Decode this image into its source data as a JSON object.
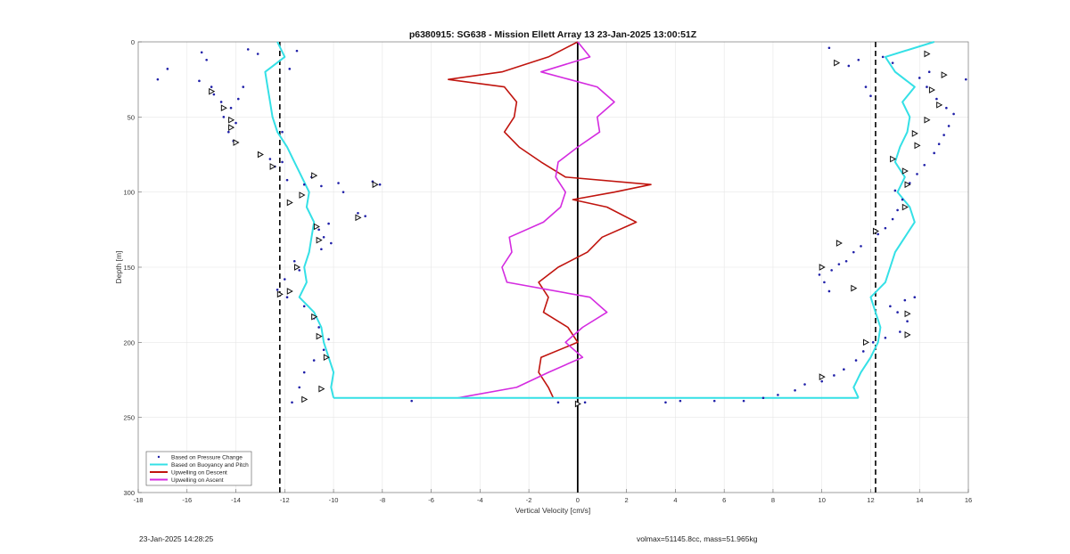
{
  "chart_data": {
    "type": "line",
    "title": "p6380915: SG638 - Mission Ellett Array 13 23-Jan-2025 13:00:51Z",
    "xlabel": "Vertical Velocity [cm/s]",
    "ylabel": "Depth [m]",
    "xlim": [
      -18,
      16
    ],
    "ylim": [
      0,
      300
    ],
    "y_reversed": true,
    "grid": true,
    "legend_position": "bottom-left",
    "x_ticks": [
      -18,
      -16,
      -14,
      -12,
      -10,
      -8,
      -6,
      -4,
      -2,
      0,
      2,
      4,
      6,
      8,
      10,
      12,
      14,
      16
    ],
    "y_ticks": [
      0,
      50,
      100,
      150,
      200,
      250,
      300
    ],
    "reference_lines": [
      {
        "x": -12.2,
        "style": "dashed",
        "color": "#000000"
      },
      {
        "x": 12.2,
        "style": "dashed",
        "color": "#000000"
      },
      {
        "x": 0,
        "style": "solid",
        "color": "#000000"
      }
    ],
    "legend": [
      {
        "label": "Based on Pressure Change",
        "style": "dots",
        "color": "#1f1fa8"
      },
      {
        "label": "Based on Buoyancy and Pitch",
        "style": "line",
        "color": "#34e0e6"
      },
      {
        "label": "Upwelling on Descent",
        "style": "line",
        "color": "#c0140e"
      },
      {
        "label": "Upwelling on Ascent",
        "style": "line",
        "color": "#d42be0"
      }
    ],
    "series": [
      {
        "name": "Based on Buoyancy and Pitch",
        "color": "#34e0e6",
        "branches": [
          {
            "depth": [
              0,
              10,
              20,
              30,
              40,
              50,
              60,
              70,
              80,
              90,
              100,
              110,
              120,
              130,
              140,
              150,
              160,
              170,
              180,
              190,
              200,
              210,
              220,
              230,
              237
            ],
            "velocity": [
              -12.3,
              -12.0,
              -12.8,
              -12.7,
              -12.6,
              -12.5,
              -12.3,
              -11.9,
              -11.6,
              -11.3,
              -11.0,
              -11.1,
              -10.8,
              -10.9,
              -11.0,
              -11.2,
              -11.1,
              -11.4,
              -10.8,
              -10.5,
              -10.4,
              -10.2,
              -10.0,
              -10.1,
              -10.0
            ]
          },
          {
            "depth": [
              0,
              10,
              20,
              30,
              40,
              50,
              60,
              70,
              80,
              90,
              100,
              110,
              120,
              130,
              140,
              150,
              160,
              170,
              180,
              190,
              200,
              210,
              220,
              230,
              237
            ],
            "velocity": [
              14.6,
              12.6,
              13.0,
              13.8,
              13.3,
              13.6,
              13.5,
              13.2,
              13.0,
              13.4,
              13.1,
              13.6,
              13.8,
              13.4,
              13.0,
              12.8,
              12.6,
              12.0,
              12.2,
              12.4,
              12.3,
              12.0,
              11.6,
              11.3,
              11.5
            ]
          }
        ]
      },
      {
        "name": "Upwelling on Descent",
        "color": "#c0140e",
        "depth": [
          0,
          10,
          20,
          25,
          30,
          40,
          50,
          60,
          70,
          80,
          90,
          95,
          100,
          105,
          110,
          120,
          130,
          140,
          150,
          160,
          170,
          180,
          190,
          200,
          210,
          220,
          230,
          237
        ],
        "velocity": [
          0,
          -1.2,
          -3.1,
          -5.3,
          -3.0,
          -2.5,
          -2.6,
          -3.0,
          -2.4,
          -1.5,
          -0.5,
          3.0,
          1.5,
          -0.2,
          1.2,
          2.4,
          1.0,
          0.4,
          -0.8,
          -1.6,
          -1.2,
          -1.4,
          -0.4,
          0.0,
          -1.5,
          -1.6,
          -1.2,
          -1.0
        ]
      },
      {
        "name": "Upwelling on Ascent",
        "color": "#d42be0",
        "depth": [
          0,
          10,
          20,
          30,
          40,
          50,
          60,
          70,
          80,
          90,
          100,
          110,
          120,
          130,
          140,
          150,
          160,
          170,
          180,
          190,
          200,
          210,
          220,
          230,
          237
        ],
        "velocity": [
          0,
          0.5,
          -1.5,
          0.8,
          1.5,
          0.8,
          0.9,
          0.0,
          -0.8,
          -0.9,
          -0.5,
          -0.7,
          -1.4,
          -2.8,
          -2.7,
          -3.1,
          -2.9,
          0.5,
          1.2,
          0.2,
          -0.5,
          0.2,
          -1.2,
          -2.5,
          -4.9
        ]
      }
    ],
    "bottom_connector": {
      "depth": 237,
      "from": -10.0,
      "to": 11.5
    },
    "pressure_change_points": [
      [
        -17.2,
        25
      ],
      [
        -16.8,
        18
      ],
      [
        -15.4,
        7
      ],
      [
        -15.2,
        12
      ],
      [
        -15.5,
        26
      ],
      [
        -15.0,
        30
      ],
      [
        -14.9,
        35
      ],
      [
        -14.6,
        40
      ],
      [
        -14.2,
        44
      ],
      [
        -14.5,
        50
      ],
      [
        -14.0,
        54
      ],
      [
        -14.3,
        60
      ],
      [
        -14.1,
        66
      ],
      [
        -13.9,
        38
      ],
      [
        -13.7,
        30
      ],
      [
        -13.1,
        8
      ],
      [
        -13.5,
        5
      ],
      [
        -12.6,
        78
      ],
      [
        -12.4,
        83
      ],
      [
        -12.1,
        80
      ],
      [
        -11.9,
        92
      ],
      [
        -11.2,
        95
      ],
      [
        -10.9,
        90
      ],
      [
        -10.5,
        96
      ],
      [
        -9.8,
        94
      ],
      [
        -9.6,
        100
      ],
      [
        -8.4,
        93
      ],
      [
        -8.1,
        95
      ],
      [
        -9.0,
        114
      ],
      [
        -8.7,
        116
      ],
      [
        -10.2,
        121
      ],
      [
        -10.6,
        125
      ],
      [
        -10.4,
        130
      ],
      [
        -10.1,
        134
      ],
      [
        -10.5,
        138
      ],
      [
        -11.6,
        146
      ],
      [
        -11.4,
        152
      ],
      [
        -12.0,
        158
      ],
      [
        -12.3,
        165
      ],
      [
        -11.9,
        170
      ],
      [
        -11.2,
        176
      ],
      [
        -10.8,
        184
      ],
      [
        -10.6,
        190
      ],
      [
        -10.2,
        198
      ],
      [
        -10.4,
        205
      ],
      [
        -10.8,
        212
      ],
      [
        -11.2,
        220
      ],
      [
        -11.4,
        230
      ],
      [
        -11.7,
        240
      ],
      [
        -12.1,
        60
      ],
      [
        -11.5,
        6
      ],
      [
        -11.8,
        18
      ],
      [
        -6.8,
        239
      ],
      [
        -0.8,
        240
      ],
      [
        0.3,
        240
      ],
      [
        3.6,
        240
      ],
      [
        4.2,
        239
      ],
      [
        5.6,
        239
      ],
      [
        6.8,
        239
      ],
      [
        7.6,
        237
      ],
      [
        8.2,
        235
      ],
      [
        8.9,
        232
      ],
      [
        9.3,
        228
      ],
      [
        10.0,
        226
      ],
      [
        10.5,
        222
      ],
      [
        10.9,
        218
      ],
      [
        11.4,
        212
      ],
      [
        11.7,
        206
      ],
      [
        12.1,
        200
      ],
      [
        12.6,
        197
      ],
      [
        13.2,
        193
      ],
      [
        13.5,
        186
      ],
      [
        13.1,
        180
      ],
      [
        12.8,
        176
      ],
      [
        13.4,
        172
      ],
      [
        13.8,
        170
      ],
      [
        10.3,
        166
      ],
      [
        10.1,
        160
      ],
      [
        9.9,
        155
      ],
      [
        10.4,
        152
      ],
      [
        10.7,
        148
      ],
      [
        11.0,
        146
      ],
      [
        11.3,
        140
      ],
      [
        11.6,
        136
      ],
      [
        12.3,
        128
      ],
      [
        12.6,
        124
      ],
      [
        12.9,
        118
      ],
      [
        13.1,
        112
      ],
      [
        13.3,
        105
      ],
      [
        13.0,
        99
      ],
      [
        13.6,
        94
      ],
      [
        13.9,
        88
      ],
      [
        14.2,
        82
      ],
      [
        14.6,
        74
      ],
      [
        14.8,
        68
      ],
      [
        15.0,
        62
      ],
      [
        15.2,
        56
      ],
      [
        15.4,
        48
      ],
      [
        15.1,
        44
      ],
      [
        14.7,
        38
      ],
      [
        14.3,
        30
      ],
      [
        14.0,
        24
      ],
      [
        15.9,
        25
      ],
      [
        10.6,
        14
      ],
      [
        10.3,
        4
      ],
      [
        11.1,
        16
      ],
      [
        11.5,
        12
      ],
      [
        12.9,
        14
      ],
      [
        12.5,
        10
      ],
      [
        11.8,
        30
      ],
      [
        12.0,
        36
      ],
      [
        14.4,
        20
      ]
    ],
    "triangle_markers": [
      [
        -15.0,
        33
      ],
      [
        -14.5,
        44
      ],
      [
        -14.2,
        52
      ],
      [
        -14.2,
        57
      ],
      [
        -14.0,
        67
      ],
      [
        -13.0,
        75
      ],
      [
        -12.5,
        83
      ],
      [
        -10.8,
        89
      ],
      [
        -11.3,
        102
      ],
      [
        -11.8,
        107
      ],
      [
        -8.3,
        95
      ],
      [
        -9.0,
        117
      ],
      [
        -10.7,
        123
      ],
      [
        -10.6,
        132
      ],
      [
        -11.5,
        150
      ],
      [
        -12.2,
        168
      ],
      [
        -11.8,
        166
      ],
      [
        -10.8,
        183
      ],
      [
        -10.6,
        196
      ],
      [
        -10.3,
        210
      ],
      [
        -10.5,
        231
      ],
      [
        -11.2,
        238
      ],
      [
        0,
        241
      ],
      [
        10.0,
        223
      ],
      [
        11.8,
        200
      ],
      [
        13.5,
        195
      ],
      [
        13.5,
        181
      ],
      [
        11.3,
        164
      ],
      [
        10.0,
        150
      ],
      [
        10.7,
        134
      ],
      [
        12.2,
        126
      ],
      [
        13.4,
        110
      ],
      [
        13.5,
        95
      ],
      [
        13.4,
        86
      ],
      [
        12.9,
        78
      ],
      [
        13.9,
        69
      ],
      [
        13.8,
        61
      ],
      [
        14.3,
        52
      ],
      [
        14.8,
        42
      ],
      [
        14.5,
        32
      ],
      [
        15.0,
        22
      ],
      [
        14.3,
        8
      ],
      [
        10.6,
        14
      ]
    ]
  },
  "footer": {
    "timestamp": "23-Jan-2025 14:28:25",
    "vessel_info": "volmax=51145.8cc, mass=51.965kg"
  }
}
